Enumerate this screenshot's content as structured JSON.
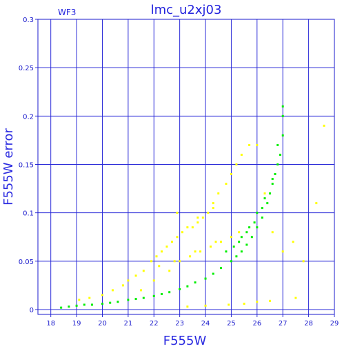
{
  "chart_data": {
    "type": "scatter",
    "title": "lmc_u2xj03",
    "subtitle": "WF3",
    "xlabel": "F555W",
    "ylabel": "F555W error",
    "xlim": [
      17.5,
      29
    ],
    "ylim": [
      -0.005,
      0.3
    ],
    "x_ticks": [
      "18",
      "19",
      "20",
      "21",
      "22",
      "23",
      "24",
      "25",
      "26",
      "27",
      "28",
      "29"
    ],
    "y_ticks": [
      "0",
      "0.05",
      "0.1",
      "0.15",
      "0.2",
      "0.25",
      "0.3"
    ],
    "grid": true,
    "series": [
      {
        "color": "#ffff00",
        "x": [
          19.1,
          19.5,
          20.0,
          20.4,
          20.8,
          21.0,
          21.3,
          21.6,
          21.9,
          22.1,
          22.3,
          22.5,
          22.7,
          22.9,
          23.1,
          23.3,
          23.5,
          23.7,
          23.9,
          24.1,
          24.3,
          24.5,
          24.8,
          25.0,
          25.2,
          25.4,
          25.7,
          26.0,
          26.3,
          26.6,
          27.0,
          27.4,
          27.8,
          28.3,
          28.6,
          21.5,
          22.0,
          22.6,
          23.0,
          23.4,
          23.8,
          24.2,
          24.6,
          25.0,
          25.3,
          22.2,
          22.8,
          23.6,
          24.4,
          23.3,
          24.0,
          24.9,
          25.5,
          26.0,
          26.5,
          27.5,
          22.9,
          23.7,
          24.3
        ],
        "y": [
          0.01,
          0.012,
          0.015,
          0.02,
          0.025,
          0.03,
          0.035,
          0.04,
          0.05,
          0.055,
          0.06,
          0.065,
          0.07,
          0.075,
          0.08,
          0.085,
          0.085,
          0.09,
          0.095,
          0.1,
          0.11,
          0.12,
          0.13,
          0.14,
          0.15,
          0.16,
          0.17,
          0.17,
          0.12,
          0.08,
          0.06,
          0.07,
          0.05,
          0.11,
          0.19,
          0.02,
          0.03,
          0.04,
          0.05,
          0.055,
          0.06,
          0.065,
          0.07,
          0.075,
          0.08,
          0.045,
          0.05,
          0.06,
          0.07,
          0.003,
          0.004,
          0.005,
          0.006,
          0.008,
          0.009,
          0.012,
          0.1,
          0.095,
          0.105
        ]
      },
      {
        "color": "#00ee00",
        "x": [
          18.4,
          18.7,
          19.0,
          19.3,
          19.6,
          20.0,
          20.3,
          20.6,
          21.0,
          21.3,
          21.6,
          22.0,
          22.3,
          22.6,
          23.0,
          23.3,
          23.6,
          24.0,
          24.3,
          24.6,
          25.0,
          25.2,
          25.4,
          25.6,
          25.8,
          26.0,
          26.2,
          26.4,
          26.6,
          26.8,
          27.0,
          25.3,
          25.6,
          25.9,
          26.2,
          26.5,
          26.7,
          26.9,
          24.8,
          25.1,
          25.4,
          25.7,
          26.0,
          26.3,
          26.6,
          26.8,
          27.0,
          27.0
        ],
        "y": [
          0.002,
          0.003,
          0.004,
          0.005,
          0.005,
          0.006,
          0.007,
          0.008,
          0.01,
          0.011,
          0.012,
          0.014,
          0.016,
          0.018,
          0.021,
          0.024,
          0.028,
          0.032,
          0.037,
          0.043,
          0.05,
          0.055,
          0.06,
          0.067,
          0.075,
          0.085,
          0.095,
          0.11,
          0.13,
          0.15,
          0.2,
          0.07,
          0.08,
          0.09,
          0.105,
          0.12,
          0.14,
          0.16,
          0.06,
          0.065,
          0.075,
          0.085,
          0.1,
          0.115,
          0.135,
          0.17,
          0.21,
          0.18
        ]
      }
    ]
  }
}
